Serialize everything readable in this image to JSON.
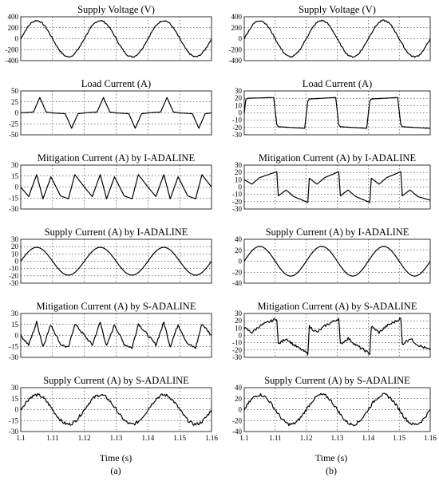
{
  "columns": [
    {
      "label": "(a)",
      "xlabel": "Time (s)"
    },
    {
      "label": "(b)",
      "xlabel": "Time (s)"
    }
  ],
  "x_ticks": [
    "1.1",
    "1.11",
    "1.12",
    "1.13",
    "1.14",
    "1.15",
    "1.16"
  ],
  "chart_data": [
    {
      "type": "line",
      "panel": "a1",
      "title": "Supply Voltage (V)",
      "xlabel": "",
      "ylabel": "",
      "xlim": [
        1.1,
        1.16
      ],
      "ylim": [
        -400,
        400
      ],
      "yticks": [
        400,
        200,
        0,
        -200,
        -400
      ],
      "grid": true,
      "x": [
        1.1,
        1.105,
        1.11,
        1.115,
        1.12,
        1.125,
        1.13,
        1.135,
        1.14,
        1.145,
        1.15,
        1.155,
        1.16
      ],
      "y": [
        0,
        330,
        0,
        -330,
        0,
        330,
        0,
        -330,
        0,
        330,
        0,
        -330,
        0
      ]
    },
    {
      "type": "line",
      "panel": "a2",
      "title": "Load Current (A)",
      "xlabel": "",
      "ylabel": "",
      "xlim": [
        1.1,
        1.16
      ],
      "ylim": [
        -50,
        50
      ],
      "yticks": [
        50,
        25,
        0,
        -25,
        -50
      ],
      "grid": true,
      "x": [
        1.1,
        1.104,
        1.106,
        1.108,
        1.11,
        1.114,
        1.116,
        1.118,
        1.12,
        1.124,
        1.126,
        1.128,
        1.13,
        1.134,
        1.136,
        1.138,
        1.14,
        1.144,
        1.146,
        1.148,
        1.15,
        1.154,
        1.156,
        1.158,
        1.16
      ],
      "y": [
        0,
        2,
        35,
        2,
        0,
        -2,
        -35,
        -2,
        0,
        2,
        35,
        2,
        0,
        -2,
        -35,
        -2,
        0,
        2,
        35,
        2,
        0,
        -2,
        -35,
        -2,
        0
      ]
    },
    {
      "type": "line",
      "panel": "a3",
      "title": "Mitigation Current (A) by I-ADALINE",
      "xlabel": "",
      "ylabel": "",
      "xlim": [
        1.1,
        1.16
      ],
      "ylim": [
        -30,
        30
      ],
      "yticks": [
        30,
        15,
        0,
        -15,
        -30
      ],
      "grid": true,
      "x": [
        1.1,
        1.1025,
        1.105,
        1.107,
        1.1095,
        1.1125,
        1.115,
        1.117,
        1.12,
        1.1225,
        1.125,
        1.127,
        1.1295,
        1.1325,
        1.135,
        1.137,
        1.14,
        1.1425,
        1.145,
        1.147,
        1.1495,
        1.1525,
        1.155,
        1.157,
        1.16
      ],
      "y": [
        0,
        -13,
        17,
        -16,
        14,
        -12,
        -16,
        17,
        0,
        -13,
        17,
        -16,
        14,
        -12,
        -16,
        17,
        0,
        -13,
        17,
        -16,
        14,
        -12,
        -16,
        17,
        0
      ]
    },
    {
      "type": "line",
      "panel": "a4",
      "title": "Supply Current (A) by I-ADALINE",
      "xlabel": "",
      "ylabel": "",
      "xlim": [
        1.1,
        1.16
      ],
      "ylim": [
        -30,
        30
      ],
      "yticks": [
        30,
        20,
        10,
        0,
        -10,
        -20,
        -30
      ],
      "grid": true,
      "x": [
        1.1,
        1.105,
        1.11,
        1.115,
        1.12,
        1.125,
        1.13,
        1.135,
        1.14,
        1.145,
        1.15,
        1.155,
        1.16
      ],
      "y": [
        0,
        19,
        0,
        -19,
        0,
        19,
        0,
        -19,
        0,
        19,
        0,
        -19,
        0
      ]
    },
    {
      "type": "line",
      "panel": "a5",
      "title": "Mitigation Current (A) by S-ADALINE",
      "xlabel": "",
      "ylabel": "",
      "xlim": [
        1.1,
        1.16
      ],
      "ylim": [
        -30,
        30
      ],
      "yticks": [
        30,
        15,
        0,
        -15,
        -30
      ],
      "grid": true,
      "x": [
        1.1,
        1.1025,
        1.105,
        1.107,
        1.1095,
        1.1125,
        1.115,
        1.117,
        1.12,
        1.1225,
        1.125,
        1.127,
        1.1295,
        1.1325,
        1.135,
        1.137,
        1.14,
        1.1425,
        1.145,
        1.147,
        1.1495,
        1.1525,
        1.155,
        1.157,
        1.16
      ],
      "y": [
        0,
        -13,
        18,
        -15,
        15,
        -12,
        -17,
        16,
        0,
        -13,
        18,
        -15,
        15,
        -12,
        -17,
        16,
        0,
        -13,
        18,
        -15,
        15,
        -12,
        -17,
        16,
        0
      ]
    },
    {
      "type": "line",
      "panel": "a6",
      "title": "Supply Current (A) by S-ADALINE",
      "xlabel": "Time (s)",
      "ylabel": "",
      "xlim": [
        1.1,
        1.16
      ],
      "ylim": [
        -30,
        30
      ],
      "yticks": [
        30,
        15,
        0,
        -15,
        -30
      ],
      "grid": true,
      "x": [
        1.1,
        1.105,
        1.11,
        1.115,
        1.12,
        1.125,
        1.13,
        1.135,
        1.14,
        1.145,
        1.15,
        1.155,
        1.16
      ],
      "y": [
        0,
        20,
        0,
        -20,
        0,
        20,
        0,
        -20,
        0,
        20,
        0,
        -20,
        0
      ]
    },
    {
      "type": "line",
      "panel": "b1",
      "title": "Supply Voltage (V)",
      "xlabel": "",
      "ylabel": "",
      "xlim": [
        1.1,
        1.16
      ],
      "ylim": [
        -400,
        400
      ],
      "yticks": [
        400,
        200,
        0,
        -200,
        -400
      ],
      "grid": true,
      "x": [
        1.1,
        1.105,
        1.11,
        1.115,
        1.12,
        1.125,
        1.13,
        1.135,
        1.14,
        1.145,
        1.15,
        1.155,
        1.16
      ],
      "y": [
        0,
        330,
        0,
        -330,
        0,
        330,
        0,
        -330,
        0,
        330,
        0,
        -330,
        0
      ]
    },
    {
      "type": "line",
      "panel": "b2",
      "title": "Load Current (A)",
      "xlabel": "",
      "ylabel": "",
      "xlim": [
        1.1,
        1.16
      ],
      "ylim": [
        -30,
        30
      ],
      "yticks": [
        30,
        20,
        10,
        0,
        -10,
        -20,
        -30
      ],
      "grid": true,
      "x": [
        1.1,
        1.1005,
        1.101,
        1.1095,
        1.1105,
        1.111,
        1.1195,
        1.1205,
        1.121,
        1.1295,
        1.1305,
        1.131,
        1.1395,
        1.1405,
        1.141,
        1.1495,
        1.1505,
        1.151,
        1.1595,
        1.16
      ],
      "y": [
        0,
        18,
        20,
        21,
        -16,
        -19,
        -21,
        16,
        19,
        21,
        -16,
        -19,
        -21,
        16,
        19,
        21,
        -16,
        -19,
        -21,
        -21
      ]
    },
    {
      "type": "line",
      "panel": "b3",
      "title": "Mitigation Current (A) by I-ADALINE",
      "xlabel": "",
      "ylabel": "",
      "xlim": [
        1.1,
        1.16
      ],
      "ylim": [
        -30,
        30
      ],
      "yticks": [
        30,
        20,
        10,
        0,
        -10,
        -20,
        -30
      ],
      "grid": true,
      "x": [
        1.1,
        1.1025,
        1.105,
        1.1105,
        1.111,
        1.1135,
        1.116,
        1.1205,
        1.121,
        1.1235,
        1.126,
        1.1305,
        1.131,
        1.1335,
        1.136,
        1.1405,
        1.141,
        1.1435,
        1.146,
        1.1505,
        1.151,
        1.1535,
        1.156,
        1.16
      ],
      "y": [
        10,
        4,
        13,
        21,
        -12,
        -4,
        -13,
        -21,
        12,
        4,
        13,
        21,
        -12,
        -4,
        -13,
        -21,
        12,
        4,
        13,
        21,
        -12,
        -4,
        -13,
        -18
      ]
    },
    {
      "type": "line",
      "panel": "b4",
      "title": "Supply Current (A) by I-ADALINE",
      "xlabel": "",
      "ylabel": "",
      "xlim": [
        1.1,
        1.16
      ],
      "ylim": [
        -40,
        40
      ],
      "yticks": [
        40,
        20,
        0,
        -20,
        -40
      ],
      "grid": true,
      "x": [
        1.1,
        1.105,
        1.11,
        1.115,
        1.12,
        1.125,
        1.13,
        1.135,
        1.14,
        1.145,
        1.15,
        1.155,
        1.16
      ],
      "y": [
        0,
        27,
        0,
        -27,
        0,
        27,
        0,
        -27,
        0,
        27,
        0,
        -27,
        0
      ]
    },
    {
      "type": "line",
      "panel": "b5",
      "title": "Mitigation Current (A) by S-ADALINE",
      "xlabel": "",
      "ylabel": "",
      "xlim": [
        1.1,
        1.16
      ],
      "ylim": [
        -30,
        30
      ],
      "yticks": [
        30,
        20,
        10,
        0,
        -10,
        -20,
        -30
      ],
      "grid": true,
      "x": [
        1.1,
        1.1025,
        1.105,
        1.1105,
        1.111,
        1.1135,
        1.116,
        1.1205,
        1.121,
        1.1235,
        1.126,
        1.1305,
        1.131,
        1.1335,
        1.136,
        1.1405,
        1.141,
        1.1435,
        1.146,
        1.1505,
        1.151,
        1.1535,
        1.156,
        1.16
      ],
      "y": [
        10,
        4,
        13,
        23,
        -12,
        -4,
        -13,
        -25,
        12,
        4,
        13,
        23,
        -12,
        -4,
        -13,
        -25,
        12,
        4,
        13,
        23,
        -12,
        -4,
        -13,
        -20
      ]
    },
    {
      "type": "line",
      "panel": "b6",
      "title": "Supply Current (A) by S-ADALINE",
      "xlabel": "Time (s)",
      "ylabel": "",
      "xlim": [
        1.1,
        1.16
      ],
      "ylim": [
        -40,
        40
      ],
      "yticks": [
        40,
        20,
        0,
        -20,
        -40
      ],
      "grid": true,
      "x": [
        1.1,
        1.105,
        1.11,
        1.115,
        1.12,
        1.125,
        1.13,
        1.135,
        1.14,
        1.145,
        1.15,
        1.155,
        1.16
      ],
      "y": [
        0,
        27,
        0,
        -27,
        0,
        27,
        0,
        -27,
        0,
        27,
        0,
        -27,
        0
      ]
    }
  ]
}
